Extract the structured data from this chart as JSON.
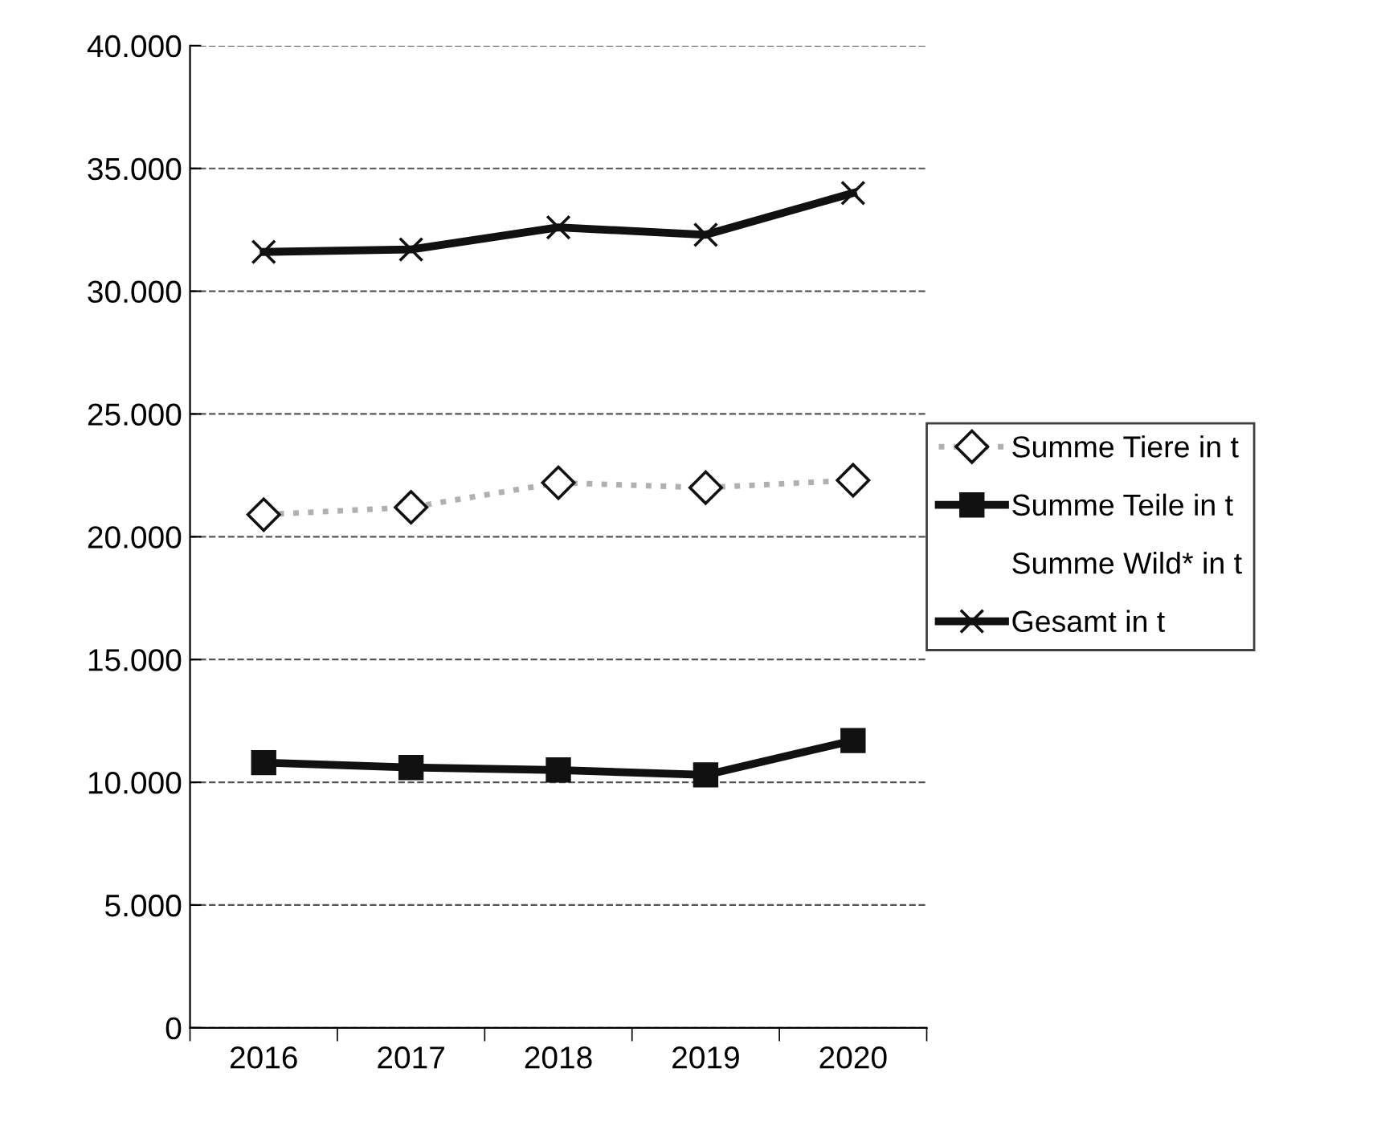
{
  "chart_data": {
    "type": "line",
    "categories": [
      "2016",
      "2017",
      "2018",
      "2019",
      "2020"
    ],
    "series": [
      {
        "name": "Summe Tiere in t",
        "color": "#b0b0b0",
        "marker": "diamond",
        "line_style": "dotted",
        "values": [
          20900,
          21200,
          22200,
          22000,
          22300
        ]
      },
      {
        "name": "Summe Teile in t",
        "color": "#111111",
        "marker": "square",
        "line_style": "solid",
        "values": [
          10800,
          10600,
          10500,
          10300,
          11700
        ]
      },
      {
        "name": "Summe Wild* in t",
        "values": [
          null,
          null,
          null,
          null,
          null
        ]
      },
      {
        "name": "Gesamt in t",
        "color": "#111111",
        "marker": "cross",
        "line_style": "solid",
        "values": [
          31600,
          31700,
          32600,
          32300,
          34000
        ]
      }
    ],
    "ylim": [
      0,
      40000
    ],
    "yticks": [
      {
        "value": 0,
        "label": "0"
      },
      {
        "value": 5000,
        "label": "5.000"
      },
      {
        "value": 10000,
        "label": "10.000"
      },
      {
        "value": 15000,
        "label": "15.000"
      },
      {
        "value": 20000,
        "label": "20.000"
      },
      {
        "value": 25000,
        "label": "25.000"
      },
      {
        "value": 30000,
        "label": "30.000"
      },
      {
        "value": 35000,
        "label": "35.000"
      },
      {
        "value": 40000,
        "label": "40.000"
      }
    ],
    "grid": "y",
    "legend": "right"
  }
}
